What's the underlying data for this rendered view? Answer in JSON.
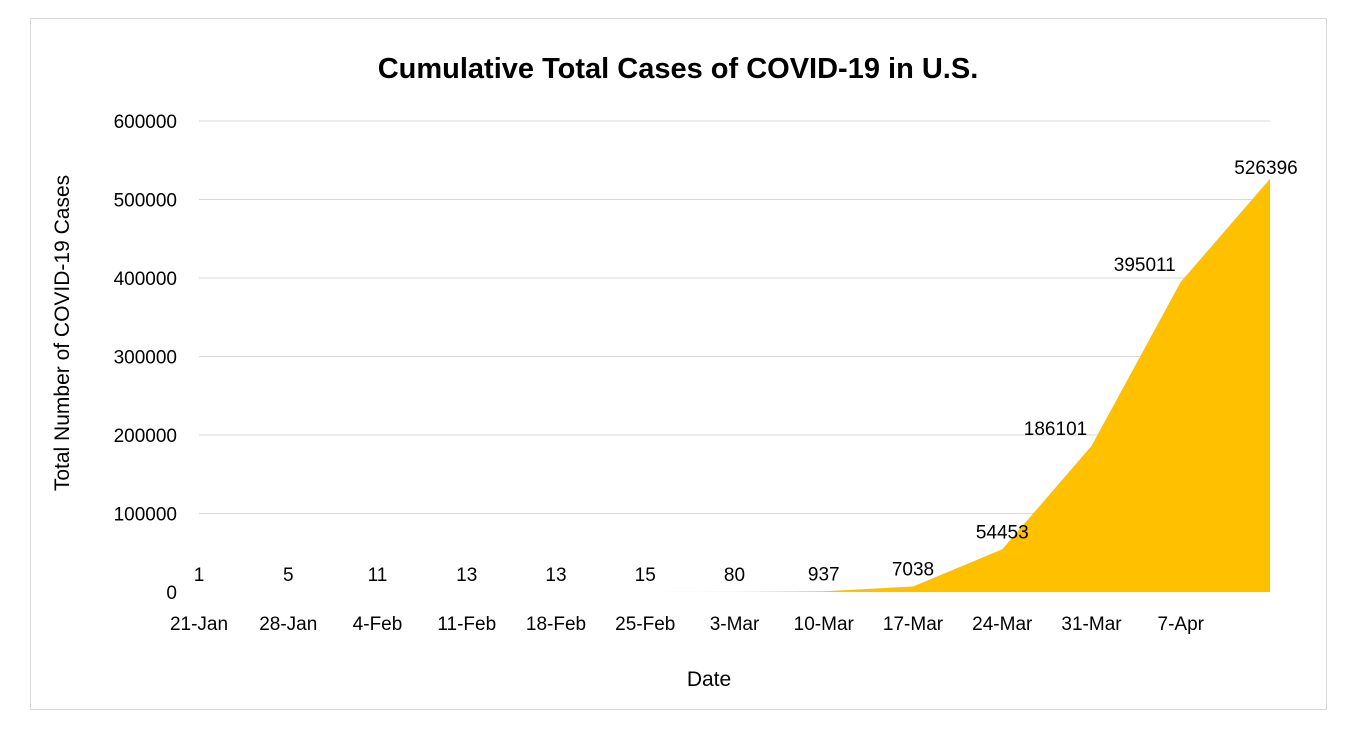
{
  "chart_data": {
    "type": "area",
    "title": "Cumulative Total Cases of COVID-19 in U.S.",
    "xlabel": "Date",
    "ylabel": "Total Number of COVID-19 Cases",
    "x_tick_labels": [
      "21-Jan",
      "28-Jan",
      "4-Feb",
      "11-Feb",
      "18-Feb",
      "25-Feb",
      "3-Mar",
      "10-Mar",
      "17-Mar",
      "24-Mar",
      "31-Mar",
      "7-Apr"
    ],
    "x_points": [
      "21-Jan",
      "28-Jan",
      "4-Feb",
      "11-Feb",
      "18-Feb",
      "25-Feb",
      "3-Mar",
      "10-Mar",
      "17-Mar",
      "24-Mar",
      "31-Mar",
      "7-Apr",
      "14-Apr"
    ],
    "values": [
      1,
      5,
      11,
      13,
      13,
      15,
      80,
      937,
      7038,
      54453,
      186101,
      395011,
      526396
    ],
    "data_labels": [
      "1",
      "5",
      "11",
      "13",
      "13",
      "15",
      "80",
      "937",
      "7038",
      "54453",
      "186101",
      "395011",
      "526396"
    ],
    "y_tick_labels": [
      "0",
      "100000",
      "200000",
      "300000",
      "400000",
      "500000",
      "600000"
    ],
    "ylim": [
      0,
      600000
    ],
    "y_tick_step": 100000,
    "grid": "horizontal",
    "legend": "none",
    "fill_color": "#ffc000",
    "grid_color": "#d9d9d9"
  }
}
